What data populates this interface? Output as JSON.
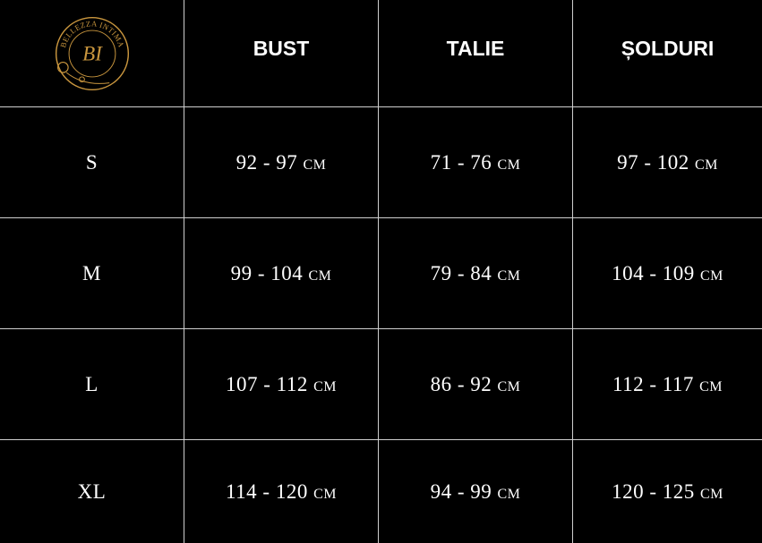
{
  "logo": {
    "text": "BELLEZZA INTIMA",
    "monogram": "BI",
    "color": "#c9963e"
  },
  "columns": [
    "BUST",
    "TALIE",
    "ȘOLDURI"
  ],
  "rows": [
    {
      "size": "S",
      "values": [
        "92 - 97 cm",
        "71 - 76 cm",
        "97 - 102 cm"
      ]
    },
    {
      "size": "M",
      "values": [
        "99 - 104 cm",
        "79 - 84 cm",
        "104 - 109 cm"
      ]
    },
    {
      "size": "L",
      "values": [
        "107 - 112 cm",
        "86 - 92 cm",
        "112 - 117 cm"
      ]
    },
    {
      "size": "XL",
      "values": [
        "114 - 120 cm",
        "94 - 99 cm",
        "120 - 125 cm"
      ]
    }
  ],
  "colors": {
    "background": "#000000",
    "text": "#ffffff",
    "grid": "#cfcfcf"
  }
}
